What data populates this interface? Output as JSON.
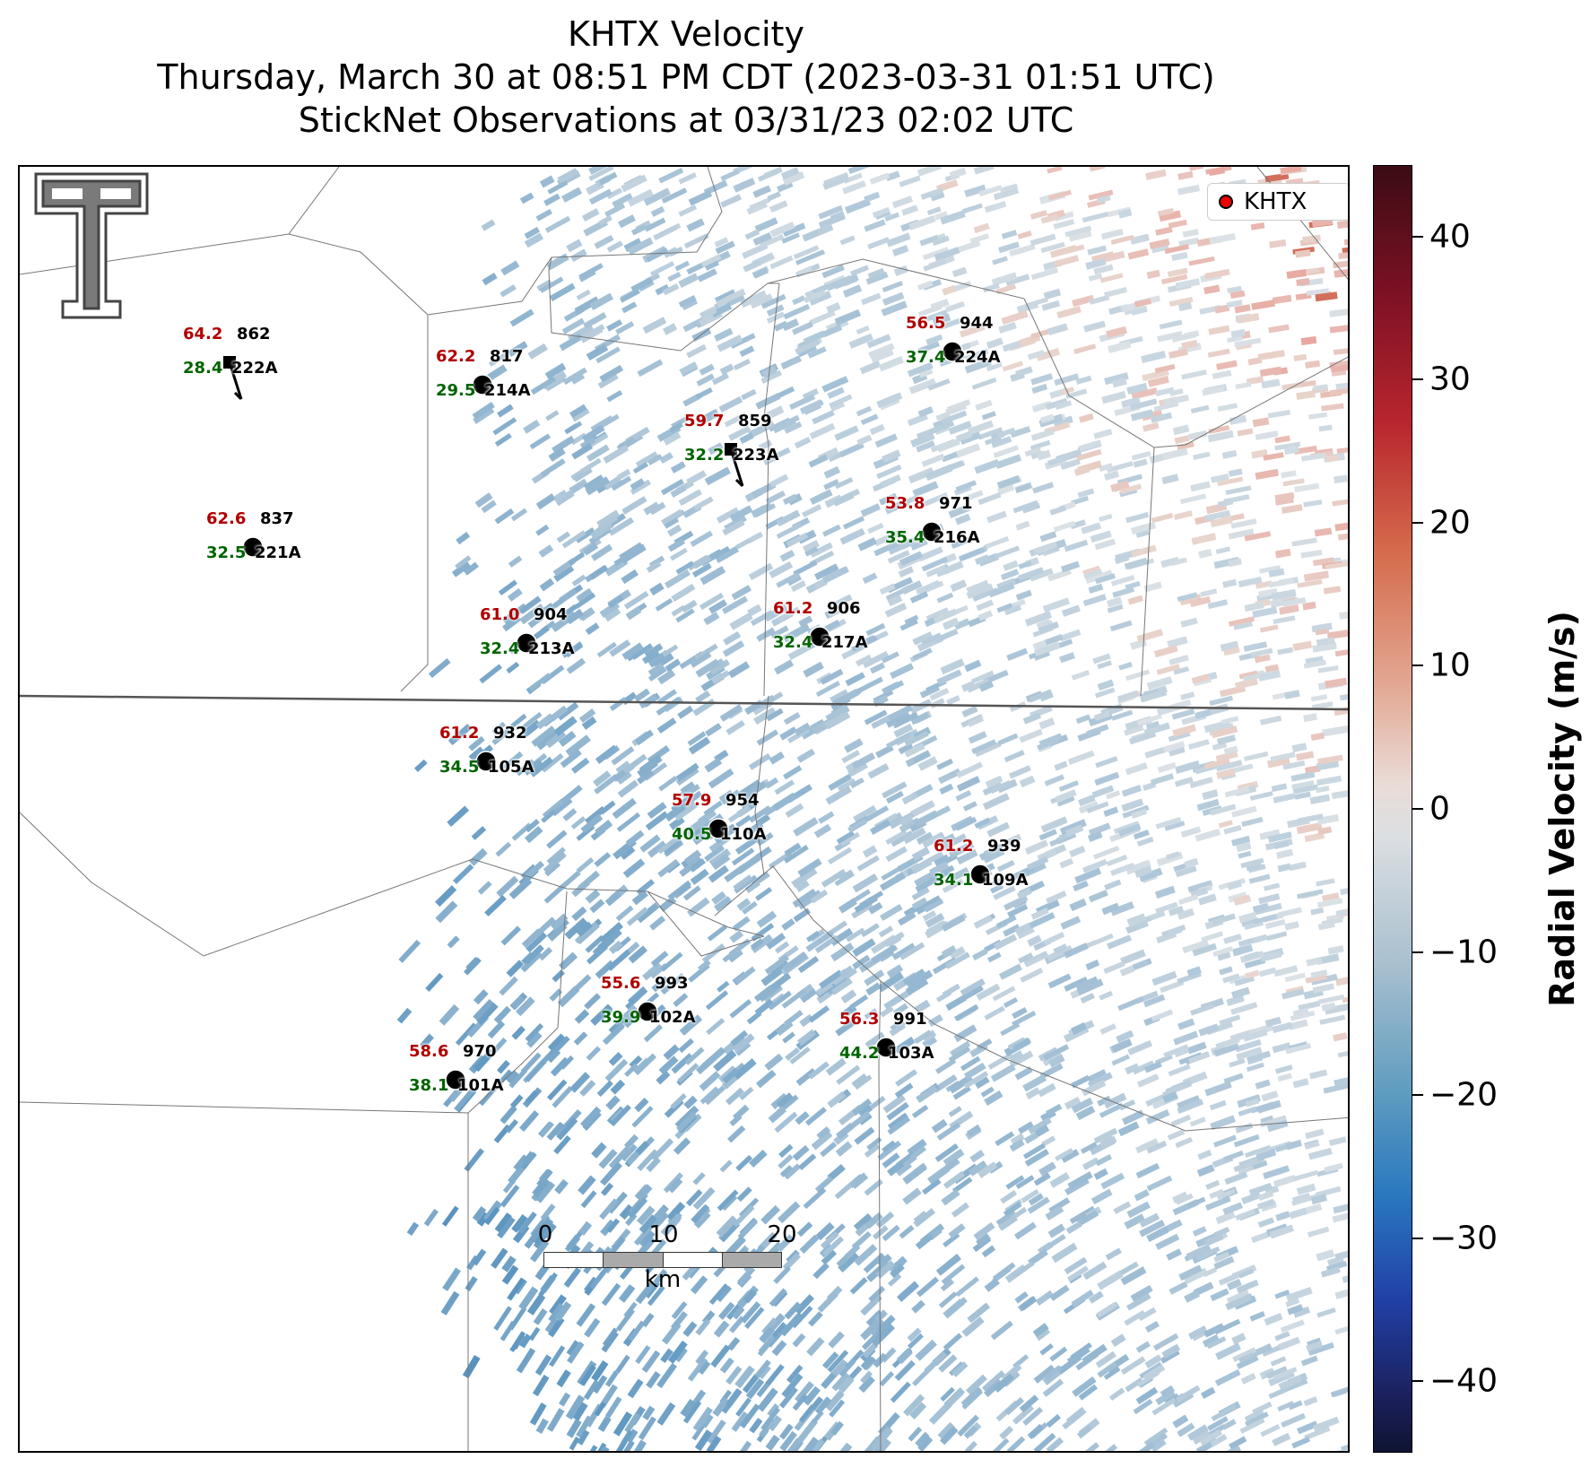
{
  "title": {
    "line1": "KHTX Velocity",
    "line2": "Thursday, March 30 at 08:51 PM CDT (2023-03-31 01:51 UTC)",
    "line3": "StickNet Observations at 03/31/23 02:02 UTC"
  },
  "legend": {
    "label": "KHTX",
    "marker_color": "#e00000"
  },
  "scalebar": {
    "ticks": [
      "0",
      "10",
      "20"
    ],
    "unit": "km"
  },
  "colorbar": {
    "title": "Radial Velocity (m/s)",
    "range": [
      -45,
      45
    ],
    "ticks": [
      "40",
      "30",
      "20",
      "10",
      "0",
      "−10",
      "−20",
      "−30",
      "−40"
    ],
    "tick_values": [
      40,
      30,
      20,
      10,
      0,
      -10,
      -20,
      -30,
      -40
    ]
  },
  "colors": {
    "gust": "#b00000",
    "speed": "#006400",
    "positive_velocity": "#b8262e",
    "negative_velocity": "#2a78bf"
  },
  "stations": [
    {
      "gust": "64.2",
      "num": "862",
      "speed": "28.4",
      "id": "222A",
      "marker": "square",
      "barb": true
    },
    {
      "gust": "62.2",
      "num": "817",
      "speed": "29.5",
      "id": "214A",
      "marker": "circle",
      "barb": false
    },
    {
      "gust": "59.7",
      "num": "859",
      "speed": "32.2",
      "id": "223A",
      "marker": "square",
      "barb": true
    },
    {
      "gust": "56.5",
      "num": "944",
      "speed": "37.4",
      "id": "224A",
      "marker": "circle",
      "barb": false
    },
    {
      "gust": "53.8",
      "num": "971",
      "speed": "35.4",
      "id": "216A",
      "marker": "circle",
      "barb": false
    },
    {
      "gust": "62.6",
      "num": "837",
      "speed": "32.5",
      "id": "221A",
      "marker": "circle",
      "barb": false
    },
    {
      "gust": "61.0",
      "num": "904",
      "speed": "32.4",
      "id": "213A",
      "marker": "circle",
      "barb": false
    },
    {
      "gust": "61.2",
      "num": "906",
      "speed": "32.4",
      "id": "217A",
      "marker": "circle",
      "barb": false
    },
    {
      "gust": "61.2",
      "num": "932",
      "speed": "34.5",
      "id": "105A",
      "marker": "circle",
      "barb": false
    },
    {
      "gust": "57.9",
      "num": "954",
      "speed": "40.5",
      "id": "110A",
      "marker": "circle",
      "barb": false
    },
    {
      "gust": "61.2",
      "num": "939",
      "speed": "34.1",
      "id": "109A",
      "marker": "circle",
      "barb": false
    },
    {
      "gust": "55.6",
      "num": "993",
      "speed": "39.9",
      "id": "102A",
      "marker": "circle",
      "barb": false
    },
    {
      "gust": "56.3",
      "num": "991",
      "speed": "44.2",
      "id": "103A",
      "marker": "circle",
      "barb": false
    },
    {
      "gust": "58.6",
      "num": "970",
      "speed": "38.1",
      "id": "101A",
      "marker": "circle",
      "barb": false
    }
  ]
}
